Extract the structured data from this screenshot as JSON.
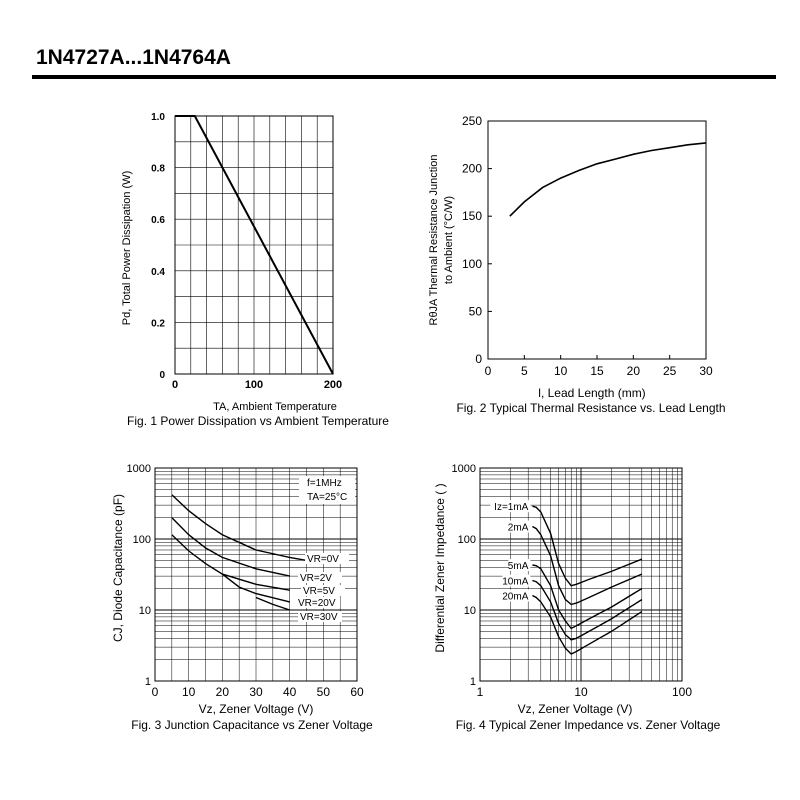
{
  "page": {
    "title": "1N4727A...1N4764A"
  },
  "chart_data": [
    {
      "id": "fig1",
      "type": "line",
      "caption": "Fig. 1 Power Dissipation vs Ambient Temperature",
      "xlabel": "TA, Ambient Temperature",
      "ylabel": "Pd, Total Power Dissipation (W)",
      "xlim": [
        0,
        200
      ],
      "ylim": [
        0,
        1.0
      ],
      "x_ticks": [
        0,
        100,
        200
      ],
      "x_tick_labels": [
        "0",
        "100",
        "200"
      ],
      "y_ticks": [
        0,
        0.2,
        0.4,
        0.6,
        0.8,
        1.0
      ],
      "y_tick_labels": [
        "0",
        "0.2",
        "0.4",
        "0.6",
        "0.8",
        "1.0"
      ],
      "grid": true,
      "series": [
        {
          "x": [
            0,
            20,
            25,
            200
          ],
          "y": [
            1.0,
            1.0,
            1.0,
            0.0
          ]
        }
      ]
    },
    {
      "id": "fig2",
      "type": "line",
      "caption": "Fig. 2 Typical Thermal Resistance vs. Lead Length",
      "xlabel": "l, Lead Length (mm)",
      "ylabel_line1": "RθJA  Thermal Resistance Junction",
      "ylabel_line2": "to Ambient (°C/W)",
      "xlim": [
        0,
        30
      ],
      "ylim": [
        0,
        250
      ],
      "x_ticks": [
        0,
        5,
        10,
        15,
        20,
        25,
        30
      ],
      "x_tick_labels": [
        "0",
        "5",
        "10",
        "15",
        "20",
        "25",
        "30"
      ],
      "y_ticks": [
        0,
        50,
        100,
        150,
        200,
        250
      ],
      "y_tick_labels": [
        "0",
        "50",
        "100",
        "150",
        "200",
        "250"
      ],
      "grid": false,
      "series": [
        {
          "x": [
            3,
            5,
            7.5,
            10,
            12.5,
            15,
            17.5,
            20,
            22.5,
            25,
            27.5,
            30
          ],
          "y": [
            150,
            165,
            180,
            190,
            198,
            205,
            210,
            215,
            219,
            222,
            225,
            227
          ]
        }
      ]
    },
    {
      "id": "fig3",
      "type": "line",
      "caption": "Fig. 3 Junction Capacitance vs Zener Voltage",
      "xlabel": "Vz, Zener Voltage (V)",
      "ylabel": "CJ, Diode Capacitance (pF)",
      "xlim": [
        0,
        60
      ],
      "ylim": [
        1,
        1000
      ],
      "yscale": "log",
      "x_ticks": [
        0,
        10,
        20,
        30,
        40,
        50,
        60
      ],
      "x_tick_labels": [
        "0",
        "10",
        "20",
        "30",
        "40",
        "50",
        "60"
      ],
      "y_ticks": [
        1,
        10,
        100,
        1000
      ],
      "y_tick_labels": [
        "1",
        "10",
        "100",
        "1000"
      ],
      "grid": true,
      "annotations": [
        "f=1MHz",
        "TA=25°C"
      ],
      "series": [
        {
          "name": "VR=0V",
          "x": [
            5,
            10,
            15,
            20,
            30,
            40,
            45
          ],
          "y": [
            420,
            250,
            165,
            115,
            70,
            55,
            50
          ]
        },
        {
          "name": "VR=2V",
          "x": [
            5,
            10,
            15,
            20,
            30,
            40
          ],
          "y": [
            200,
            115,
            75,
            55,
            38,
            30
          ]
        },
        {
          "name": "VR=5V",
          "x": [
            5,
            10,
            15,
            20,
            30,
            40
          ],
          "y": [
            115,
            68,
            45,
            32,
            23,
            19
          ]
        },
        {
          "name": "VR=20V",
          "x": [
            20,
            25,
            30,
            40
          ],
          "y": [
            32,
            21,
            17,
            13
          ]
        },
        {
          "name": "VR=30V",
          "x": [
            30,
            35,
            40
          ],
          "y": [
            15,
            12,
            10
          ]
        }
      ]
    },
    {
      "id": "fig4",
      "type": "line",
      "caption": "Fig. 4 Typical Zener Impedance vs. Zener Voltage",
      "xlabel": "Vz, Zener Voltage (V)",
      "ylabel": "Differential Zener Impedance (  )",
      "xscale": "log",
      "yscale": "log",
      "xlim": [
        1,
        100
      ],
      "ylim": [
        1,
        1000
      ],
      "x_ticks": [
        1,
        10,
        100
      ],
      "x_tick_labels": [
        "1",
        "10",
        "100"
      ],
      "y_ticks": [
        1,
        10,
        100,
        1000
      ],
      "y_tick_labels": [
        "1",
        "10",
        "100",
        "1000"
      ],
      "grid": true,
      "series": [
        {
          "name": "Iz=1mA",
          "x": [
            3.3,
            3.6,
            4,
            5,
            6,
            7,
            8,
            9,
            12,
            20,
            40
          ],
          "y": [
            290,
            280,
            240,
            120,
            45,
            28,
            22,
            23,
            27,
            35,
            52
          ]
        },
        {
          "name": "2mA",
          "x": [
            3.3,
            3.6,
            4,
            5,
            6,
            7,
            8,
            9,
            12,
            20,
            40
          ],
          "y": [
            150,
            140,
            115,
            58,
            22,
            14,
            12,
            12.5,
            15,
            21,
            32
          ]
        },
        {
          "name": "5mA",
          "x": [
            3.3,
            3.6,
            4,
            5,
            6,
            7,
            8,
            9,
            12,
            20,
            40
          ],
          "y": [
            43,
            42,
            38,
            22,
            10,
            7,
            5.5,
            6,
            7.5,
            11,
            20
          ]
        },
        {
          "name": "10mA",
          "x": [
            3.3,
            3.6,
            4,
            5,
            6,
            7,
            8,
            9,
            12,
            20,
            40
          ],
          "y": [
            26,
            25,
            22,
            13,
            6.5,
            4.5,
            3.8,
            4,
            5,
            7.5,
            14
          ]
        },
        {
          "name": "20mA",
          "x": [
            3.3,
            3.6,
            4,
            5,
            6,
            7,
            8,
            9,
            12,
            20,
            40
          ],
          "y": [
            16,
            15,
            13,
            8,
            4.2,
            2.9,
            2.4,
            2.6,
            3.3,
            5,
            9.5
          ]
        }
      ]
    }
  ]
}
